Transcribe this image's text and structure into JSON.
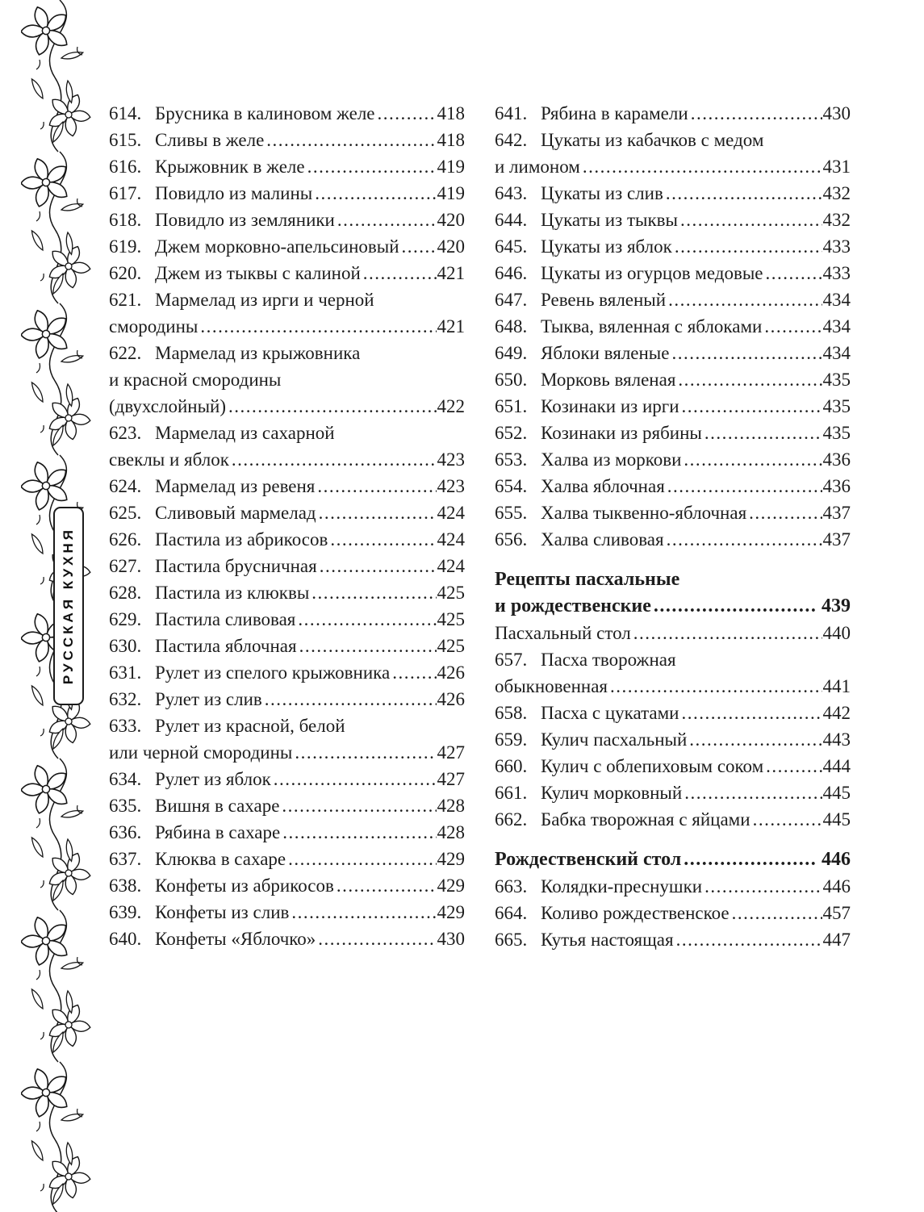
{
  "page": {
    "background": "#ffffff",
    "text_color": "#1d1d1d",
    "kind": "book-table-of-contents"
  },
  "sidebar": {
    "label": "РУССКАЯ КУХНЯ",
    "ornament_icon": "floral-vine-border-icon"
  },
  "toc": {
    "columns": [
      {
        "items": [
          {
            "type": "entry",
            "num": "614.",
            "lines": [
              "Брусника в калиновом желе"
            ],
            "page": "418"
          },
          {
            "type": "entry",
            "num": "615.",
            "lines": [
              "Сливы в желе"
            ],
            "page": "418"
          },
          {
            "type": "entry",
            "num": "616.",
            "lines": [
              "Крыжовник в желе"
            ],
            "page": "419"
          },
          {
            "type": "entry",
            "num": "617.",
            "lines": [
              "Повидло из малины"
            ],
            "page": "419"
          },
          {
            "type": "entry",
            "num": "618.",
            "lines": [
              "Повидло из земляники"
            ],
            "page": "420"
          },
          {
            "type": "entry",
            "num": "619.",
            "lines": [
              "Джем морковно-апельсиновый"
            ],
            "page": "420"
          },
          {
            "type": "entry",
            "num": "620.",
            "lines": [
              "Джем из тыквы с калиной"
            ],
            "page": "421"
          },
          {
            "type": "entry",
            "num": "621.",
            "lines": [
              "Мармелад из ирги и черной",
              "смородины"
            ],
            "page": "421"
          },
          {
            "type": "entry",
            "num": "622.",
            "lines": [
              "Мармелад из крыжовника",
              "и красной смородины",
              "(двухслойный)"
            ],
            "page": "422"
          },
          {
            "type": "entry",
            "num": "623.",
            "lines": [
              "Мармелад из сахарной",
              "свеклы и яблок"
            ],
            "page": "423"
          },
          {
            "type": "entry",
            "num": "624.",
            "lines": [
              "Мармелад из ревеня"
            ],
            "page": "423"
          },
          {
            "type": "entry",
            "num": "625.",
            "lines": [
              "Сливовый мармелад"
            ],
            "page": "424"
          },
          {
            "type": "entry",
            "num": "626.",
            "lines": [
              "Пастила из абрикосов"
            ],
            "page": "424"
          },
          {
            "type": "entry",
            "num": "627.",
            "lines": [
              "Пастила брусничная"
            ],
            "page": "424"
          },
          {
            "type": "entry",
            "num": "628.",
            "lines": [
              "Пастила из клюквы"
            ],
            "page": "425"
          },
          {
            "type": "entry",
            "num": "629.",
            "lines": [
              "Пастила сливовая"
            ],
            "page": "425"
          },
          {
            "type": "entry",
            "num": "630.",
            "lines": [
              "Пастила яблочная"
            ],
            "page": "425"
          },
          {
            "type": "entry",
            "num": "631.",
            "lines": [
              "Рулет из спелого крыжовника"
            ],
            "page": "426"
          },
          {
            "type": "entry",
            "num": "632.",
            "lines": [
              "Рулет из слив"
            ],
            "page": "426"
          },
          {
            "type": "entry",
            "num": "633.",
            "lines": [
              "Рулет из красной, белой",
              "или черной смородины"
            ],
            "page": "427"
          },
          {
            "type": "entry",
            "num": "634.",
            "lines": [
              "Рулет из яблок"
            ],
            "page": "427"
          },
          {
            "type": "entry",
            "num": "635.",
            "lines": [
              "Вишня в сахаре"
            ],
            "page": "428"
          },
          {
            "type": "entry",
            "num": "636.",
            "lines": [
              "Рябина в сахаре"
            ],
            "page": "428"
          },
          {
            "type": "entry",
            "num": "637.",
            "lines": [
              "Клюква в сахаре"
            ],
            "page": "429"
          },
          {
            "type": "entry",
            "num": "638.",
            "lines": [
              "Конфеты из абрикосов"
            ],
            "page": "429"
          },
          {
            "type": "entry",
            "num": "639.",
            "lines": [
              "Конфеты из слив"
            ],
            "page": "429"
          },
          {
            "type": "entry",
            "num": "640.",
            "lines": [
              "Конфеты «Яблочко»"
            ],
            "page": "430"
          }
        ]
      },
      {
        "items": [
          {
            "type": "entry",
            "num": "641.",
            "lines": [
              "Рябина в карамели"
            ],
            "page": "430"
          },
          {
            "type": "entry",
            "num": "642.",
            "lines": [
              "Цукаты из кабачков с медом",
              "и лимоном"
            ],
            "page": "431"
          },
          {
            "type": "entry",
            "num": "643.",
            "lines": [
              "Цукаты из слив"
            ],
            "page": "432"
          },
          {
            "type": "entry",
            "num": "644.",
            "lines": [
              "Цукаты из тыквы"
            ],
            "page": "432"
          },
          {
            "type": "entry",
            "num": "645.",
            "lines": [
              "Цукаты из яблок"
            ],
            "page": "433"
          },
          {
            "type": "entry",
            "num": "646.",
            "lines": [
              "Цукаты из огурцов медовые"
            ],
            "page": "433"
          },
          {
            "type": "entry",
            "num": "647.",
            "lines": [
              "Ревень вяленый"
            ],
            "page": "434"
          },
          {
            "type": "entry",
            "num": "648.",
            "lines": [
              "Тыква, вяленная с яблоками"
            ],
            "page": "434"
          },
          {
            "type": "entry",
            "num": "649.",
            "lines": [
              "Яблоки вяленые"
            ],
            "page": "434"
          },
          {
            "type": "entry",
            "num": "650.",
            "lines": [
              "Морковь вяленая"
            ],
            "page": "435"
          },
          {
            "type": "entry",
            "num": "651.",
            "lines": [
              "Козинаки из ирги"
            ],
            "page": "435"
          },
          {
            "type": "entry",
            "num": "652.",
            "lines": [
              "Козинаки из рябины"
            ],
            "page": "435"
          },
          {
            "type": "entry",
            "num": "653.",
            "lines": [
              "Халва из моркови"
            ],
            "page": "436"
          },
          {
            "type": "entry",
            "num": "654.",
            "lines": [
              "Халва яблочная"
            ],
            "page": "436"
          },
          {
            "type": "entry",
            "num": "655.",
            "lines": [
              "Халва тыквенно-яблочная"
            ],
            "page": "437"
          },
          {
            "type": "entry",
            "num": "656.",
            "lines": [
              "Халва сливовая"
            ],
            "page": "437"
          },
          {
            "type": "heading",
            "lines": [
              "Рецепты пасхальные",
              "и рождественские"
            ],
            "page": "439"
          },
          {
            "type": "plain",
            "lines": [
              "Пасхальный стол"
            ],
            "page": "440"
          },
          {
            "type": "entry",
            "num": "657.",
            "lines": [
              "Пасха творожная",
              "обыкновенная"
            ],
            "page": "441"
          },
          {
            "type": "entry",
            "num": "658.",
            "lines": [
              "Пасха с цукатами"
            ],
            "page": "442"
          },
          {
            "type": "entry",
            "num": "659.",
            "lines": [
              "Кулич пасхальный"
            ],
            "page": "443"
          },
          {
            "type": "entry",
            "num": "660.",
            "lines": [
              "Кулич с облепиховым соком"
            ],
            "page": "444"
          },
          {
            "type": "entry",
            "num": "661.",
            "lines": [
              "Кулич морковный"
            ],
            "page": "445"
          },
          {
            "type": "entry",
            "num": "662.",
            "lines": [
              "Бабка творожная с яйцами"
            ],
            "page": "445"
          },
          {
            "type": "heading",
            "lines": [
              "Рождественский стол"
            ],
            "page": "446"
          },
          {
            "type": "entry",
            "num": "663.",
            "lines": [
              "Колядки-преснушки"
            ],
            "page": "446"
          },
          {
            "type": "entry",
            "num": "664.",
            "lines": [
              "Коливо рождественское"
            ],
            "page": "457"
          },
          {
            "type": "entry",
            "num": "665.",
            "lines": [
              "Кутья настоящая"
            ],
            "page": "447"
          }
        ]
      }
    ]
  }
}
